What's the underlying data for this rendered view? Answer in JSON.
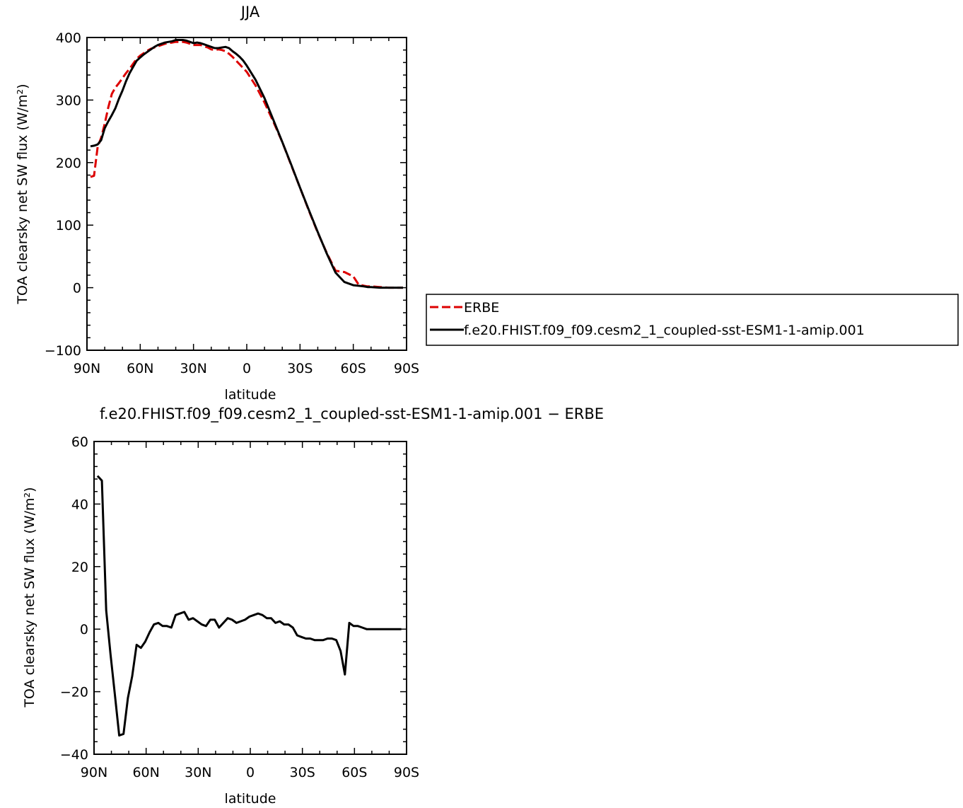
{
  "chart_data": [
    {
      "type": "line",
      "title": "JJA",
      "xlabel": "latitude",
      "ylabel": "TOA clearsky net SW flux (W/m²)",
      "xlim": [
        90,
        -90
      ],
      "ylim": [
        -100,
        400
      ],
      "x_ticks": [
        {
          "value": 90,
          "label": "90N"
        },
        {
          "value": 60,
          "label": "60N"
        },
        {
          "value": 30,
          "label": "30N"
        },
        {
          "value": 0,
          "label": "0"
        },
        {
          "value": -30,
          "label": "30S"
        },
        {
          "value": -60,
          "label": "60S"
        },
        {
          "value": -90,
          "label": "90S"
        }
      ],
      "y_ticks": [
        {
          "value": 400,
          "label": "400"
        },
        {
          "value": 300,
          "label": "300"
        },
        {
          "value": 200,
          "label": "200"
        },
        {
          "value": 100,
          "label": "100"
        },
        {
          "value": 0,
          "label": "0"
        },
        {
          "value": -100,
          "label": "−100"
        }
      ],
      "legend": "right",
      "series": [
        {
          "name": "ERBE",
          "color": "#dd0000",
          "dash": true,
          "x": [
            88,
            86,
            84,
            82,
            80,
            78,
            76,
            74,
            72,
            70,
            68,
            66,
            64,
            62,
            60,
            58,
            56,
            54,
            52,
            50,
            48,
            46,
            44,
            42,
            40,
            38,
            36,
            34,
            32,
            30,
            28,
            26,
            24,
            22,
            20,
            18,
            16,
            14,
            12,
            10,
            8,
            6,
            4,
            2,
            0,
            -5,
            -10,
            -15,
            -20,
            -25,
            -30,
            -35,
            -40,
            -45,
            -50,
            -55,
            -60,
            -63,
            -66,
            -68,
            -70,
            -75,
            -80,
            -85,
            -88
          ],
          "y": [
            177,
            179,
            225,
            240,
            262,
            288,
            310,
            320,
            327,
            335,
            343,
            350,
            358,
            366,
            371,
            375,
            379,
            382,
            384,
            386,
            388,
            390,
            391,
            392,
            393,
            393,
            393,
            392,
            390,
            388,
            388,
            388,
            386,
            384,
            381,
            380,
            381,
            380,
            378,
            374,
            369,
            363,
            357,
            351,
            345,
            323,
            296,
            265,
            233,
            196,
            160,
            123,
            88,
            56,
            27,
            25,
            18,
            5,
            3,
            2,
            2,
            1,
            0,
            0,
            0
          ]
        },
        {
          "name": "f.e20.FHIST.f09_f09.cesm2_1_coupled-sst-ESM1-1-amip.001",
          "color": "#000000",
          "dash": false,
          "x": [
            88,
            86,
            84,
            82,
            80,
            78,
            76,
            74,
            72,
            70,
            68,
            66,
            64,
            62,
            60,
            58,
            56,
            54,
            52,
            50,
            48,
            46,
            44,
            42,
            40,
            38,
            36,
            34,
            32,
            30,
            28,
            26,
            24,
            22,
            20,
            18,
            16,
            14,
            12,
            10,
            8,
            6,
            4,
            2,
            0,
            -5,
            -10,
            -15,
            -20,
            -25,
            -30,
            -35,
            -40,
            -45,
            -50,
            -55,
            -60,
            -63,
            -66,
            -68,
            -70,
            -75,
            -80,
            -85,
            -88
          ],
          "y": [
            226,
            227,
            229,
            236,
            255,
            266,
            276,
            287,
            302,
            315,
            330,
            343,
            353,
            363,
            368,
            373,
            377,
            381,
            385,
            388,
            390,
            392,
            393,
            394,
            396,
            396,
            396,
            395,
            393,
            391,
            392,
            391,
            389,
            387,
            385,
            383,
            383,
            384,
            385,
            383,
            378,
            374,
            369,
            363,
            355,
            332,
            303,
            268,
            233,
            197,
            160,
            124,
            89,
            55,
            24,
            9,
            4,
            3,
            2,
            1,
            1,
            0,
            0,
            0,
            0
          ]
        }
      ]
    },
    {
      "type": "line",
      "title": "f.e20.FHIST.f09_f09.cesm2_1_coupled-sst-ESM1-1-amip.001 − ERBE",
      "xlabel": "latitude",
      "ylabel": "TOA clearsky net SW flux (W/m²)",
      "xlim": [
        90,
        -90
      ],
      "ylim": [
        -40,
        60
      ],
      "x_ticks": [
        {
          "value": 90,
          "label": "90N"
        },
        {
          "value": 60,
          "label": "60N"
        },
        {
          "value": 30,
          "label": "30N"
        },
        {
          "value": 0,
          "label": "0"
        },
        {
          "value": -30,
          "label": "30S"
        },
        {
          "value": -60,
          "label": "60S"
        },
        {
          "value": -90,
          "label": "90S"
        }
      ],
      "y_ticks": [
        {
          "value": 60,
          "label": "60"
        },
        {
          "value": 40,
          "label": "40"
        },
        {
          "value": 20,
          "label": "20"
        },
        {
          "value": 0,
          "label": "0"
        },
        {
          "value": -20,
          "label": "−20"
        },
        {
          "value": -40,
          "label": "−40"
        }
      ],
      "series": [
        {
          "color": "#000000",
          "x": [
            88,
            85.5,
            83,
            80.5,
            78,
            75.5,
            73,
            70.5,
            68,
            65.5,
            63,
            60.5,
            58,
            55.5,
            53,
            50.5,
            48,
            45.5,
            43,
            40.5,
            38,
            35.5,
            33,
            30.5,
            28,
            25.5,
            23,
            20.5,
            18,
            15.5,
            13,
            10.5,
            8,
            5.5,
            3,
            0.5,
            -2,
            -4.5,
            -7,
            -9.5,
            -12,
            -14.5,
            -17,
            -19.5,
            -22,
            -24.5,
            -27,
            -29.5,
            -32,
            -34.5,
            -37,
            -39.5,
            -42,
            -44.5,
            -47,
            -49.5,
            -52,
            -54.5,
            -57,
            -59.5,
            -62,
            -64.5,
            -67,
            -69.5,
            -72,
            -74.5,
            -77,
            -79.5,
            -82,
            -84.5,
            -87
          ],
          "y": [
            49,
            47.5,
            6,
            -8,
            -21,
            -34,
            -33.5,
            -22,
            -15,
            -5,
            -6,
            -4,
            -1,
            1.5,
            2,
            1,
            1,
            0.5,
            4.5,
            5,
            5.5,
            3,
            3.5,
            2.5,
            1.5,
            1,
            3,
            3,
            0.5,
            2,
            3.5,
            3,
            2,
            2.5,
            3,
            4,
            4.5,
            5,
            4.5,
            3.5,
            3.5,
            2,
            2.5,
            1.5,
            1.5,
            0.5,
            -2,
            -2.5,
            -3,
            -3,
            -3.5,
            -3.5,
            -3.5,
            -3,
            -3,
            -3.5,
            -7,
            -14.5,
            2,
            1,
            1,
            0.5,
            0,
            0,
            0,
            0,
            0,
            0,
            0,
            0,
            0
          ]
        }
      ]
    }
  ]
}
